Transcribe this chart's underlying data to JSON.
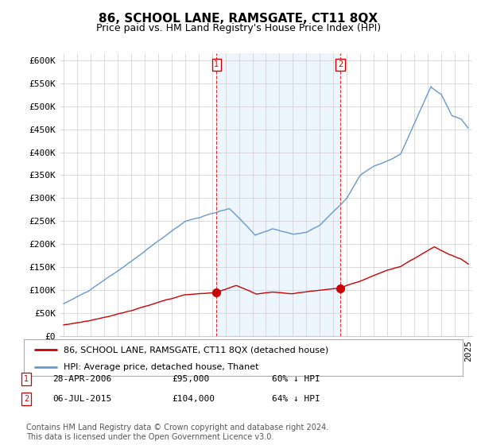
{
  "title": "86, SCHOOL LANE, RAMSGATE, CT11 8QX",
  "subtitle": "Price paid vs. HM Land Registry's House Price Index (HPI)",
  "ylabel_ticks": [
    "£0",
    "£50K",
    "£100K",
    "£150K",
    "£200K",
    "£250K",
    "£300K",
    "£350K",
    "£400K",
    "£450K",
    "£500K",
    "£550K",
    "£600K"
  ],
  "ytick_values": [
    0,
    50000,
    100000,
    150000,
    200000,
    250000,
    300000,
    350000,
    400000,
    450000,
    500000,
    550000,
    600000
  ],
  "ylim": [
    0,
    615000
  ],
  "xlim_start": 1994.7,
  "xlim_end": 2025.3,
  "marker1_x": 2006.32,
  "marker1_y": 95000,
  "marker2_x": 2015.51,
  "marker2_y": 104000,
  "legend_label_red": "86, SCHOOL LANE, RAMSGATE, CT11 8QX (detached house)",
  "legend_label_blue": "HPI: Average price, detached house, Thanet",
  "marker1_date": "28-APR-2006",
  "marker1_price": "£95,000",
  "marker1_pct": "60% ↓ HPI",
  "marker2_date": "06-JUL-2015",
  "marker2_price": "£104,000",
  "marker2_pct": "64% ↓ HPI",
  "footer": "Contains HM Land Registry data © Crown copyright and database right 2024.\nThis data is licensed under the Open Government Licence v3.0.",
  "red_color": "#cc0000",
  "blue_color": "#6699cc",
  "blue_fill_color": "#ddeeff",
  "vline_color": "#cc0000",
  "grid_color": "#cccccc",
  "background_color": "#ffffff",
  "title_fontsize": 11,
  "subtitle_fontsize": 9,
  "tick_fontsize": 8,
  "legend_fontsize": 8,
  "footer_fontsize": 7
}
